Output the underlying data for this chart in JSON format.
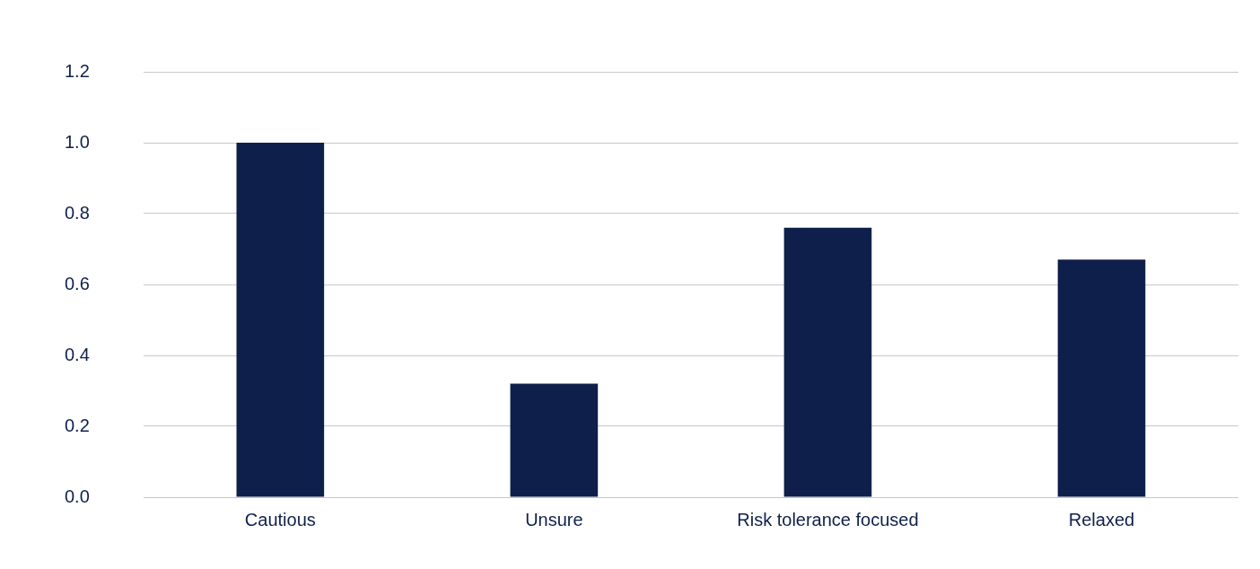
{
  "chart_data": {
    "type": "bar",
    "categories": [
      "Cautious",
      "Unsure",
      "Risk tolerance focused",
      "Relaxed"
    ],
    "values": [
      1.0,
      0.32,
      0.76,
      0.67
    ],
    "color": "#0e1f4b",
    "ylim": [
      0,
      1.2
    ],
    "yticks": [
      {
        "value": 0,
        "label": "0.0"
      },
      {
        "value": 0.2,
        "label": "0.2"
      },
      {
        "value": 0.4,
        "label": "0.4"
      },
      {
        "value": 0.6,
        "label": "0.6"
      },
      {
        "value": 0.8,
        "label": "0.8"
      },
      {
        "value": 1.0,
        "label": "1.0"
      },
      {
        "value": 1.2,
        "label": "1.2"
      }
    ],
    "grid": "y",
    "legend": false
  }
}
